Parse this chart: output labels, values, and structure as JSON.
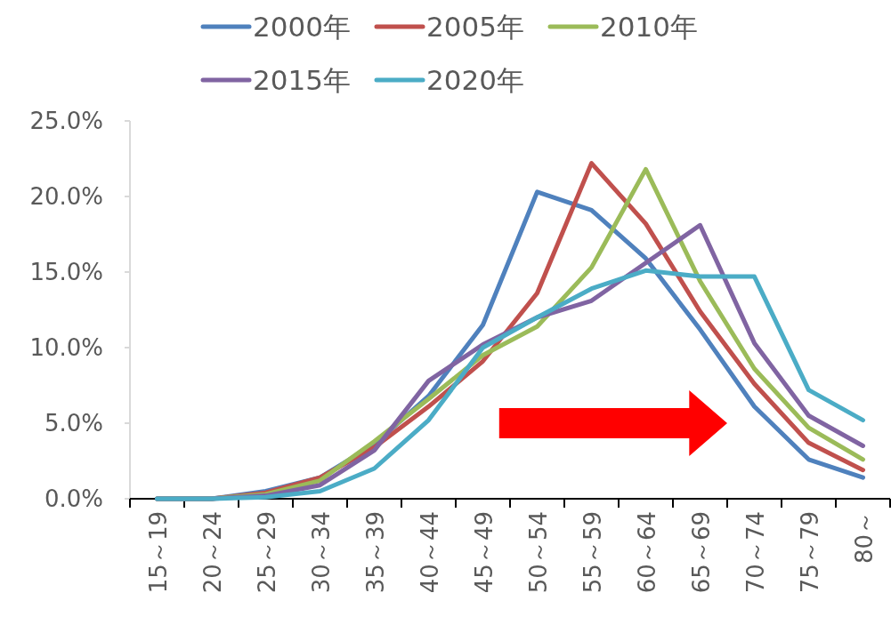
{
  "chart_data": {
    "type": "line",
    "categories": [
      "15～19",
      "20～24",
      "25～29",
      "30～34",
      "35～39",
      "40～44",
      "45～49",
      "50～54",
      "55～59",
      "60～64",
      "65～69",
      "70～74",
      "75～79",
      "80～"
    ],
    "series": [
      {
        "name": "2000年",
        "color": "#4f81bd",
        "values": [
          0,
          0,
          0.5,
          1.4,
          3.6,
          6.8,
          11.5,
          20.3,
          19.1,
          15.9,
          11.2,
          6.1,
          2.6,
          1.4
        ]
      },
      {
        "name": "2005年",
        "color": "#c0504d",
        "values": [
          0,
          0,
          0.4,
          1.4,
          3.4,
          6.1,
          9.1,
          13.6,
          22.2,
          18.2,
          12.4,
          7.6,
          3.7,
          1.9
        ]
      },
      {
        "name": "2010年",
        "color": "#9bbb59",
        "values": [
          0,
          0,
          0.3,
          1.2,
          3.8,
          6.6,
          9.5,
          11.4,
          15.3,
          21.8,
          14.4,
          8.6,
          4.7,
          2.6
        ]
      },
      {
        "name": "2015年",
        "color": "#8064a2",
        "values": [
          0,
          0,
          0.2,
          0.9,
          3.2,
          7.8,
          10.2,
          12.0,
          13.1,
          15.6,
          18.1,
          10.3,
          5.5,
          3.5
        ]
      },
      {
        "name": "2020年",
        "color": "#4bacc6",
        "values": [
          0,
          0,
          0.1,
          0.5,
          2.0,
          5.2,
          10.0,
          12.0,
          13.9,
          15.1,
          14.7,
          14.7,
          7.2,
          5.2
        ]
      }
    ],
    "ylim": [
      0,
      25
    ],
    "yticks": [
      {
        "value": 0,
        "label": "0.0%"
      },
      {
        "value": 5,
        "label": "5.0%"
      },
      {
        "value": 10,
        "label": "10.0%"
      },
      {
        "value": 15,
        "label": "15.0%"
      },
      {
        "value": 20,
        "label": "20.0%"
      },
      {
        "value": 25,
        "label": "25.0%"
      }
    ],
    "legend": "top"
  }
}
